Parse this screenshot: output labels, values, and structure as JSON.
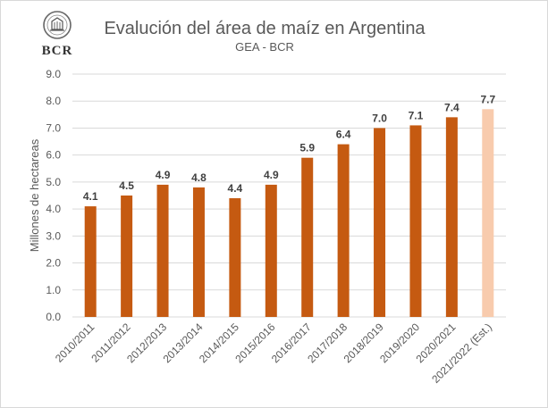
{
  "logo": {
    "text": "BCR"
  },
  "chart_data": {
    "type": "bar",
    "title": "Evalución del área de maíz en Argentina",
    "subtitle": "GEA - BCR",
    "xlabel": "",
    "ylabel": "Millones de hectareas",
    "ylim": [
      0,
      9
    ],
    "ytick_step": 1,
    "ytick_labels": [
      "0.0",
      "1.0",
      "2.0",
      "3.0",
      "4.0",
      "5.0",
      "6.0",
      "7.0",
      "8.0",
      "9.0"
    ],
    "grid": true,
    "legend": "none",
    "categories": [
      "2010/2011",
      "2011/2012",
      "2012/2013",
      "2013/2014",
      "2014/2015",
      "2015/2016",
      "2016/2017",
      "2017/2018",
      "2018/2019",
      "2019/2020",
      "2020/2021",
      "2021/2022 (Est.)"
    ],
    "values": [
      4.1,
      4.5,
      4.9,
      4.8,
      4.4,
      4.9,
      5.9,
      6.4,
      7.0,
      7.1,
      7.4,
      7.7
    ],
    "data_labels": [
      "4.1",
      "4.5",
      "4.9",
      "4.8",
      "4.4",
      "4.9",
      "5.9",
      "6.4",
      "7.0",
      "7.1",
      "7.4",
      "7.7"
    ],
    "colors": {
      "bar": "#c55a11",
      "estimate_bar": "#f8cbad",
      "grid": "#d9d9d9",
      "axis_text": "#595959",
      "label_text": "#404040"
    },
    "estimate_index": 11
  }
}
